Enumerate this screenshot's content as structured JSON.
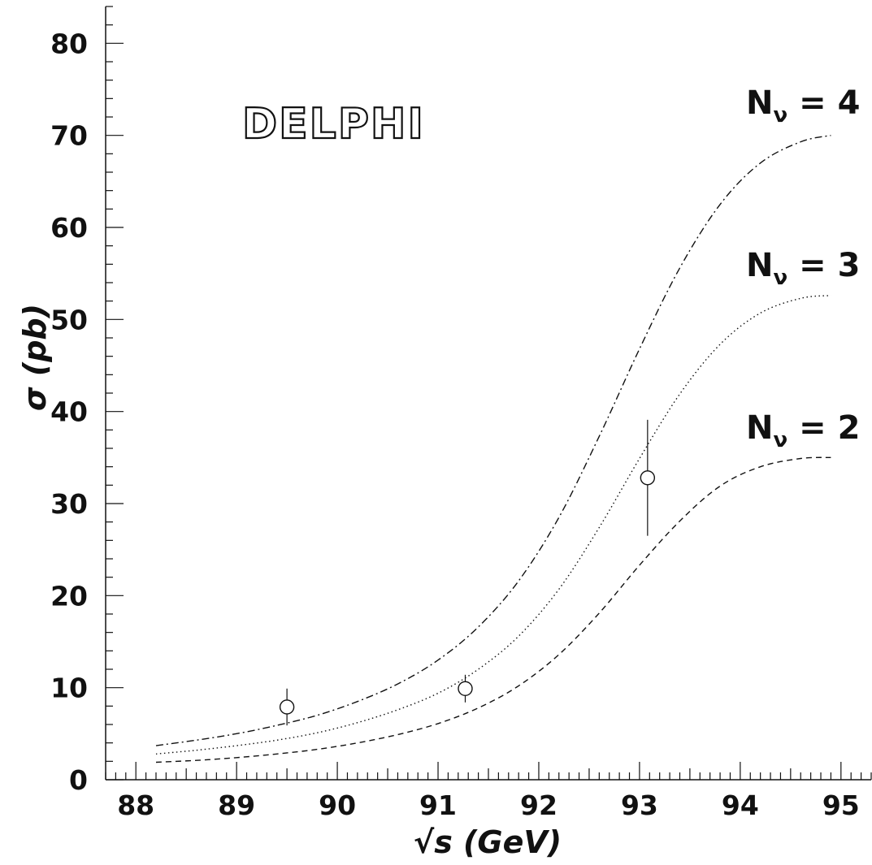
{
  "chart_data": {
    "type": "line",
    "title": "",
    "watermark_text": "DELPHI",
    "xlabel": "√s  (GeV)",
    "ylabel": "σ (pb)",
    "xlim": [
      87.7,
      95.3
    ],
    "ylim": [
      0,
      84
    ],
    "x_ticks": [
      "88",
      "89",
      "90",
      "91",
      "92",
      "93",
      "94",
      "95"
    ],
    "y_ticks": [
      "0",
      "10",
      "20",
      "30",
      "40",
      "50",
      "60",
      "70",
      "80"
    ],
    "grid": false,
    "series": [
      {
        "name": "Nν = 4",
        "label_nu_sub": "ν",
        "label_rest": " = 4",
        "line_style": "dash-dot",
        "x": [
          88.2,
          88.6,
          89.0,
          89.4,
          89.8,
          90.2,
          90.6,
          91.0,
          91.4,
          91.8,
          92.2,
          92.6,
          93.0,
          93.4,
          93.8,
          94.2,
          94.6,
          94.9
        ],
        "y": [
          3.7,
          4.3,
          5.0,
          5.9,
          7.0,
          8.5,
          10.4,
          13.0,
          16.6,
          21.6,
          28.5,
          37.3,
          46.8,
          55.6,
          62.5,
          67.0,
          69.3,
          70.0
        ]
      },
      {
        "name": "Nν = 3",
        "label_nu_sub": "ν",
        "label_rest": " = 3",
        "line_style": "dotted",
        "x": [
          88.2,
          88.6,
          89.0,
          89.4,
          89.8,
          90.2,
          90.6,
          91.0,
          91.4,
          91.8,
          92.2,
          92.6,
          93.0,
          93.4,
          93.8,
          94.2,
          94.6,
          94.9
        ],
        "y": [
          2.8,
          3.2,
          3.7,
          4.3,
          5.1,
          6.2,
          7.6,
          9.4,
          12.0,
          15.6,
          20.7,
          27.4,
          34.9,
          41.9,
          47.3,
          50.7,
          52.3,
          52.6
        ]
      },
      {
        "name": "Nν = 2",
        "label_nu_sub": "ν",
        "label_rest": " = 2",
        "line_style": "dashed",
        "x": [
          88.2,
          88.6,
          89.0,
          89.4,
          89.8,
          90.2,
          90.6,
          91.0,
          91.4,
          91.8,
          92.2,
          92.6,
          93.0,
          93.4,
          93.8,
          94.2,
          94.6,
          94.9
        ],
        "y": [
          1.9,
          2.1,
          2.4,
          2.8,
          3.3,
          4.0,
          4.9,
          6.1,
          7.8,
          10.2,
          13.6,
          18.1,
          23.3,
          28.1,
          31.9,
          34.0,
          34.9,
          35.0
        ]
      }
    ],
    "data_points": [
      {
        "x": 89.5,
        "y": 7.9,
        "yerr_low": 2.0,
        "yerr_high": 2.0
      },
      {
        "x": 91.27,
        "y": 9.9,
        "yerr_low": 1.5,
        "yerr_high": 1.5
      },
      {
        "x": 93.08,
        "y": 32.8,
        "yerr_low": 6.3,
        "yerr_high": 6.3
      }
    ]
  }
}
